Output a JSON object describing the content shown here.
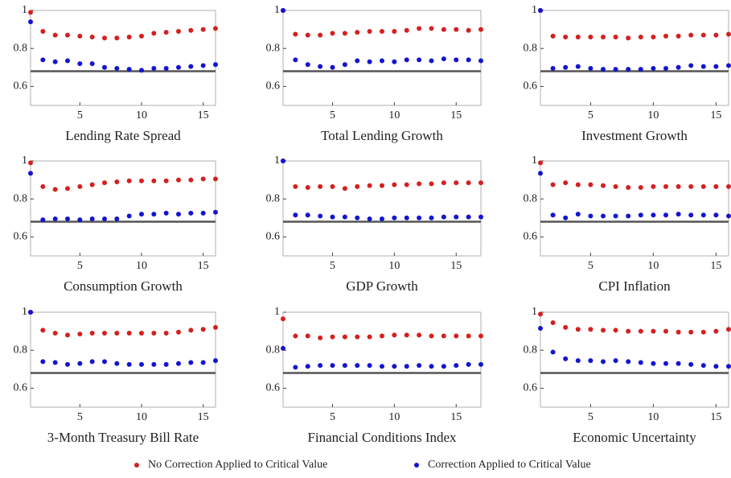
{
  "chart_data": [
    {
      "type": "scatter",
      "title": "Lending Rate Spread",
      "x": [
        1,
        2,
        3,
        4,
        5,
        6,
        7,
        8,
        9,
        10,
        11,
        12,
        13,
        14,
        15,
        16
      ],
      "xlim": [
        1,
        16
      ],
      "xticks": [
        5,
        10,
        15
      ],
      "ylim": [
        0.5,
        1
      ],
      "yticks": [
        0.6,
        0.8,
        1
      ],
      "hline": 0.68,
      "series": [
        {
          "values": [
            0.99,
            0.89,
            0.87,
            0.87,
            0.865,
            0.86,
            0.855,
            0.855,
            0.86,
            0.865,
            0.88,
            0.885,
            0.89,
            0.895,
            0.9,
            0.905
          ]
        },
        {
          "values": [
            0.94,
            0.74,
            0.73,
            0.735,
            0.72,
            0.72,
            0.7,
            0.695,
            0.69,
            0.685,
            0.695,
            0.695,
            0.7,
            0.705,
            0.71,
            0.715
          ]
        }
      ]
    },
    {
      "type": "scatter",
      "title": "Total Lending Growth",
      "x": [
        1,
        2,
        3,
        4,
        5,
        6,
        7,
        8,
        9,
        10,
        11,
        12,
        13,
        14,
        15,
        16,
        17
      ],
      "xlim": [
        1,
        17
      ],
      "xticks": [
        5,
        10,
        15
      ],
      "ylim": [
        0.5,
        1
      ],
      "yticks": [
        0.6,
        0.8,
        1
      ],
      "hline": 0.68,
      "series": [
        {
          "values": [
            1.0,
            0.875,
            0.87,
            0.87,
            0.88,
            0.88,
            0.885,
            0.89,
            0.89,
            0.89,
            0.895,
            0.905,
            0.905,
            0.9,
            0.9,
            0.895,
            0.9
          ]
        },
        {
          "values": [
            1.0,
            0.74,
            0.715,
            0.705,
            0.7,
            0.715,
            0.735,
            0.73,
            0.735,
            0.73,
            0.74,
            0.74,
            0.735,
            0.745,
            0.74,
            0.74,
            0.735
          ]
        }
      ]
    },
    {
      "type": "scatter",
      "title": "Investment Growth",
      "x": [
        1,
        2,
        3,
        4,
        5,
        6,
        7,
        8,
        9,
        10,
        11,
        12,
        13,
        14,
        15,
        16
      ],
      "xlim": [
        1,
        16
      ],
      "xticks": [
        5,
        10,
        15
      ],
      "ylim": [
        0.5,
        1
      ],
      "yticks": [
        0.6,
        0.8,
        1
      ],
      "hline": 0.68,
      "series": [
        {
          "values": [
            1.0,
            0.865,
            0.86,
            0.86,
            0.86,
            0.86,
            0.86,
            0.855,
            0.86,
            0.86,
            0.865,
            0.865,
            0.87,
            0.87,
            0.87,
            0.875
          ]
        },
        {
          "values": [
            1.0,
            0.695,
            0.7,
            0.705,
            0.695,
            0.69,
            0.69,
            0.69,
            0.69,
            0.695,
            0.695,
            0.7,
            0.71,
            0.705,
            0.705,
            0.71
          ]
        }
      ]
    },
    {
      "type": "scatter",
      "title": "Consumption Growth",
      "x": [
        1,
        2,
        3,
        4,
        5,
        6,
        7,
        8,
        9,
        10,
        11,
        12,
        13,
        14,
        15,
        16
      ],
      "xlim": [
        1,
        16
      ],
      "xticks": [
        5,
        10,
        15
      ],
      "ylim": [
        0.5,
        1
      ],
      "yticks": [
        0.6,
        0.8,
        1
      ],
      "hline": 0.68,
      "series": [
        {
          "values": [
            0.99,
            0.865,
            0.85,
            0.855,
            0.865,
            0.875,
            0.885,
            0.89,
            0.895,
            0.895,
            0.895,
            0.895,
            0.9,
            0.9,
            0.905,
            0.905
          ]
        },
        {
          "values": [
            0.935,
            0.69,
            0.695,
            0.695,
            0.69,
            0.695,
            0.695,
            0.695,
            0.71,
            0.72,
            0.72,
            0.725,
            0.72,
            0.725,
            0.725,
            0.73
          ]
        }
      ]
    },
    {
      "type": "scatter",
      "title": "GDP Growth",
      "x": [
        1,
        2,
        3,
        4,
        5,
        6,
        7,
        8,
        9,
        10,
        11,
        12,
        13,
        14,
        15,
        16,
        17
      ],
      "xlim": [
        1,
        17
      ],
      "xticks": [
        5,
        10,
        15
      ],
      "ylim": [
        0.5,
        1
      ],
      "yticks": [
        0.6,
        0.8,
        1
      ],
      "hline": 0.68,
      "series": [
        {
          "values": [
            1.0,
            0.865,
            0.86,
            0.865,
            0.865,
            0.855,
            0.865,
            0.87,
            0.87,
            0.875,
            0.875,
            0.88,
            0.88,
            0.885,
            0.885,
            0.885,
            0.885
          ]
        },
        {
          "values": [
            1.0,
            0.715,
            0.715,
            0.71,
            0.705,
            0.705,
            0.7,
            0.695,
            0.695,
            0.7,
            0.7,
            0.7,
            0.7,
            0.705,
            0.705,
            0.705,
            0.705
          ]
        }
      ]
    },
    {
      "type": "scatter",
      "title": "CPI Inflation",
      "x": [
        1,
        2,
        3,
        4,
        5,
        6,
        7,
        8,
        9,
        10,
        11,
        12,
        13,
        14,
        15,
        16
      ],
      "xlim": [
        1,
        16
      ],
      "xticks": [
        5,
        10,
        15
      ],
      "ylim": [
        0.5,
        1
      ],
      "yticks": [
        0.6,
        0.8,
        1
      ],
      "hline": 0.68,
      "series": [
        {
          "values": [
            0.99,
            0.875,
            0.885,
            0.875,
            0.875,
            0.87,
            0.865,
            0.86,
            0.86,
            0.865,
            0.865,
            0.865,
            0.865,
            0.865,
            0.865,
            0.865
          ]
        },
        {
          "values": [
            0.935,
            0.715,
            0.7,
            0.72,
            0.71,
            0.71,
            0.71,
            0.71,
            0.715,
            0.715,
            0.715,
            0.72,
            0.715,
            0.715,
            0.715,
            0.71
          ]
        }
      ]
    },
    {
      "type": "scatter",
      "title": "3-Month Treasury Bill Rate",
      "x": [
        1,
        2,
        3,
        4,
        5,
        6,
        7,
        8,
        9,
        10,
        11,
        12,
        13,
        14,
        15,
        16
      ],
      "xlim": [
        1,
        16
      ],
      "xticks": [
        5,
        10,
        15
      ],
      "ylim": [
        0.5,
        1
      ],
      "yticks": [
        0.6,
        0.8,
        1
      ],
      "hline": 0.68,
      "series": [
        {
          "values": [
            1.0,
            0.905,
            0.89,
            0.88,
            0.885,
            0.89,
            0.89,
            0.89,
            0.89,
            0.89,
            0.89,
            0.89,
            0.895,
            0.905,
            0.91,
            0.92
          ]
        },
        {
          "values": [
            1.0,
            0.74,
            0.735,
            0.725,
            0.73,
            0.74,
            0.74,
            0.73,
            0.725,
            0.725,
            0.725,
            0.725,
            0.73,
            0.735,
            0.735,
            0.745
          ]
        }
      ]
    },
    {
      "type": "scatter",
      "title": "Financial Conditions Index",
      "x": [
        1,
        2,
        3,
        4,
        5,
        6,
        7,
        8,
        9,
        10,
        11,
        12,
        13,
        14,
        15,
        16,
        17
      ],
      "xlim": [
        1,
        17
      ],
      "xticks": [
        5,
        10,
        15
      ],
      "ylim": [
        0.5,
        1
      ],
      "yticks": [
        0.6,
        0.8,
        1
      ],
      "hline": 0.68,
      "series": [
        {
          "values": [
            0.965,
            0.875,
            0.875,
            0.865,
            0.87,
            0.87,
            0.87,
            0.87,
            0.875,
            0.88,
            0.88,
            0.88,
            0.875,
            0.875,
            0.875,
            0.875,
            0.875
          ]
        },
        {
          "values": [
            0.81,
            0.71,
            0.715,
            0.72,
            0.72,
            0.72,
            0.72,
            0.72,
            0.715,
            0.715,
            0.715,
            0.72,
            0.715,
            0.715,
            0.72,
            0.725,
            0.725
          ]
        }
      ]
    },
    {
      "type": "scatter",
      "title": "Economic Uncertainty",
      "x": [
        1,
        2,
        3,
        4,
        5,
        6,
        7,
        8,
        9,
        10,
        11,
        12,
        13,
        14,
        15,
        16
      ],
      "xlim": [
        1,
        16
      ],
      "xticks": [
        5,
        10,
        15
      ],
      "ylim": [
        0.5,
        1
      ],
      "yticks": [
        0.6,
        0.8,
        1
      ],
      "hline": 0.68,
      "series": [
        {
          "values": [
            0.99,
            0.945,
            0.92,
            0.91,
            0.91,
            0.905,
            0.905,
            0.9,
            0.9,
            0.9,
            0.9,
            0.895,
            0.895,
            0.895,
            0.9,
            0.91
          ]
        },
        {
          "values": [
            0.915,
            0.79,
            0.755,
            0.745,
            0.745,
            0.74,
            0.745,
            0.74,
            0.735,
            0.73,
            0.73,
            0.73,
            0.725,
            0.72,
            0.715,
            0.715
          ]
        }
      ]
    }
  ],
  "legend": [
    {
      "name": "No Correction Applied to Critical Value",
      "color": "#d42020"
    },
    {
      "name": "Correction Applied to Critical Value",
      "color": "#1414d0"
    }
  ]
}
